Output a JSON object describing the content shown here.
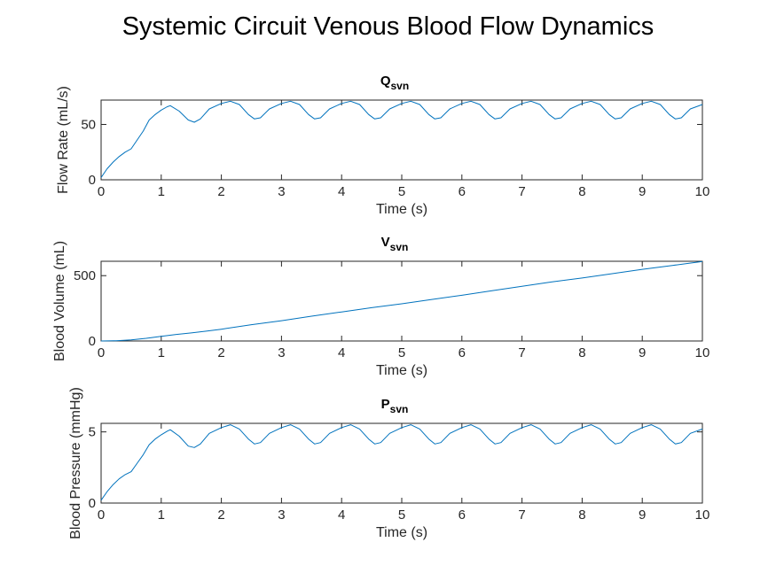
{
  "figure": {
    "title": "Systemic Circuit Venous Blood Flow Dynamics"
  },
  "colors": {
    "line": "#0072BD",
    "axis": "#262626"
  },
  "chart_data": [
    {
      "type": "line",
      "title_main": "Q",
      "title_sub": "svn",
      "xlabel": "Time (s)",
      "ylabel": "Flow Rate (mL/s)",
      "xlim": [
        0,
        10
      ],
      "ylim": [
        0,
        72
      ],
      "xticks": [
        0,
        1,
        2,
        3,
        4,
        5,
        6,
        7,
        8,
        9,
        10
      ],
      "yticks": [
        0,
        50
      ],
      "grid": false,
      "series": [
        {
          "x": [
            0,
            0.1,
            0.2,
            0.3,
            0.4,
            0.5,
            0.6,
            0.7,
            0.8,
            0.9,
            1.0,
            1.1,
            1.15,
            1.3,
            1.45,
            1.55,
            1.65,
            1.8,
            2.0,
            2.15,
            2.3,
            2.45,
            2.55,
            2.65,
            2.8,
            3.0,
            3.15,
            3.3,
            3.45,
            3.55,
            3.65,
            3.8,
            4.0,
            4.15,
            4.3,
            4.45,
            4.55,
            4.65,
            4.8,
            5.0,
            5.15,
            5.3,
            5.45,
            5.55,
            5.65,
            5.8,
            6.0,
            6.15,
            6.3,
            6.45,
            6.55,
            6.65,
            6.8,
            7.0,
            7.15,
            7.3,
            7.45,
            7.55,
            7.65,
            7.8,
            8.0,
            8.15,
            8.3,
            8.45,
            8.55,
            8.65,
            8.8,
            9.0,
            9.15,
            9.3,
            9.45,
            9.55,
            9.65,
            9.8,
            10.0
          ],
          "y": [
            2,
            10,
            16,
            21,
            25,
            28,
            36,
            44,
            54,
            59,
            63,
            66,
            67,
            62,
            54,
            52,
            55,
            64,
            69,
            71,
            68,
            59,
            55,
            56,
            64,
            69,
            71,
            68,
            59,
            55,
            56,
            64,
            69,
            71,
            68,
            59,
            55,
            56,
            64,
            69,
            71,
            68,
            59,
            55,
            56,
            64,
            69,
            71,
            68,
            59,
            55,
            56,
            64,
            69,
            71,
            68,
            59,
            55,
            56,
            64,
            69,
            71,
            68,
            59,
            55,
            56,
            64,
            69,
            71,
            68,
            59,
            55,
            56,
            64,
            68
          ]
        }
      ]
    },
    {
      "type": "line",
      "title_main": "V",
      "title_sub": "svn",
      "xlabel": "Time (s)",
      "ylabel": "Blood Volume (mL)",
      "xlim": [
        0,
        10
      ],
      "ylim": [
        0,
        610
      ],
      "xticks": [
        0,
        1,
        2,
        3,
        4,
        5,
        6,
        7,
        8,
        9,
        10
      ],
      "yticks": [
        0,
        500
      ],
      "grid": false,
      "series": [
        {
          "x": [
            0,
            0.25,
            0.5,
            0.75,
            1.0,
            1.25,
            1.5,
            1.75,
            2.0,
            2.5,
            3.0,
            3.5,
            4.0,
            4.5,
            5.0,
            5.5,
            6.0,
            6.5,
            7.0,
            7.5,
            8.0,
            8.5,
            9.0,
            9.5,
            10.0
          ],
          "y": [
            0,
            2,
            8,
            20,
            35,
            50,
            62,
            75,
            90,
            125,
            155,
            190,
            222,
            255,
            285,
            318,
            350,
            385,
            418,
            452,
            482,
            515,
            548,
            578,
            608
          ]
        }
      ]
    },
    {
      "type": "line",
      "title_main": "P",
      "title_sub": "svn",
      "xlabel": "Time (s)",
      "ylabel": "Blood Pressure (mmHg)",
      "xlim": [
        0,
        10
      ],
      "ylim": [
        0,
        5.6
      ],
      "xticks": [
        0,
        1,
        2,
        3,
        4,
        5,
        6,
        7,
        8,
        9,
        10
      ],
      "yticks": [
        0,
        5
      ],
      "grid": false,
      "series": [
        {
          "x": [
            0,
            0.1,
            0.2,
            0.3,
            0.4,
            0.5,
            0.6,
            0.7,
            0.8,
            0.9,
            1.0,
            1.1,
            1.15,
            1.3,
            1.45,
            1.55,
            1.65,
            1.8,
            2.0,
            2.15,
            2.3,
            2.45,
            2.55,
            2.65,
            2.8,
            3.0,
            3.15,
            3.3,
            3.45,
            3.55,
            3.65,
            3.8,
            4.0,
            4.15,
            4.3,
            4.45,
            4.55,
            4.65,
            4.8,
            5.0,
            5.15,
            5.3,
            5.45,
            5.55,
            5.65,
            5.8,
            6.0,
            6.15,
            6.3,
            6.45,
            6.55,
            6.65,
            6.8,
            7.0,
            7.15,
            7.3,
            7.45,
            7.55,
            7.65,
            7.8,
            8.0,
            8.15,
            8.3,
            8.45,
            8.55,
            8.65,
            8.8,
            9.0,
            9.15,
            9.3,
            9.45,
            9.55,
            9.65,
            9.8,
            10.0
          ],
          "y": [
            0.2,
            0.8,
            1.3,
            1.7,
            2.0,
            2.2,
            2.8,
            3.4,
            4.1,
            4.5,
            4.8,
            5.05,
            5.15,
            4.7,
            4.0,
            3.9,
            4.15,
            4.9,
            5.3,
            5.5,
            5.2,
            4.5,
            4.15,
            4.25,
            4.9,
            5.3,
            5.5,
            5.2,
            4.5,
            4.15,
            4.25,
            4.9,
            5.3,
            5.5,
            5.2,
            4.5,
            4.15,
            4.25,
            4.9,
            5.3,
            5.5,
            5.2,
            4.5,
            4.15,
            4.25,
            4.9,
            5.3,
            5.5,
            5.2,
            4.5,
            4.15,
            4.25,
            4.9,
            5.3,
            5.5,
            5.2,
            4.5,
            4.15,
            4.25,
            4.9,
            5.3,
            5.5,
            5.2,
            4.5,
            4.15,
            4.25,
            4.9,
            5.3,
            5.5,
            5.2,
            4.5,
            4.15,
            4.25,
            4.9,
            5.2
          ]
        }
      ]
    }
  ]
}
